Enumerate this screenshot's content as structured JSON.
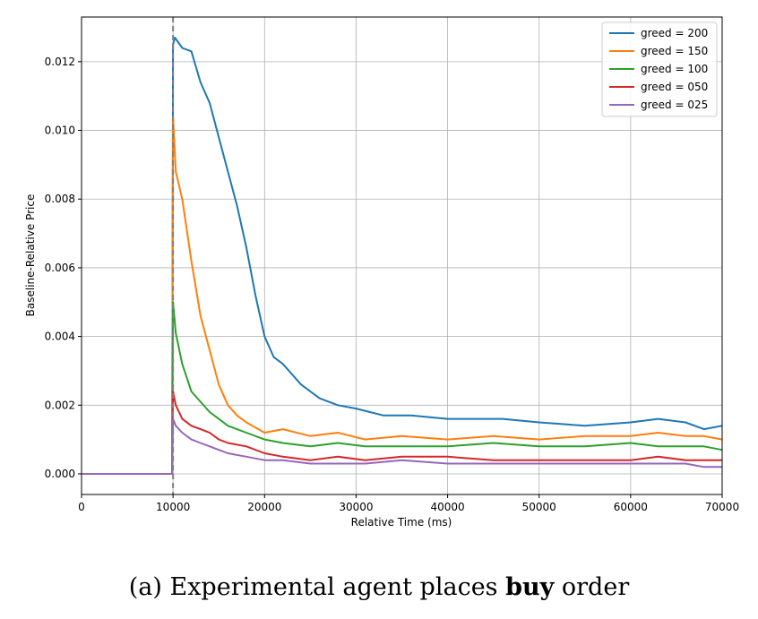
{
  "chart_data": {
    "type": "line",
    "title": "",
    "xlabel": "Relative Time (ms)",
    "ylabel": "Baseline-Relative Price",
    "xlim": [
      0,
      70000
    ],
    "ylim": [
      -0.0006,
      0.0133
    ],
    "xticks": [
      0,
      10000,
      20000,
      30000,
      40000,
      50000,
      60000,
      70000
    ],
    "yticks": [
      0.0,
      0.002,
      0.004,
      0.006,
      0.008,
      0.01,
      0.012
    ],
    "xtick_labels": [
      "0",
      "10000",
      "20000",
      "30000",
      "40000",
      "50000",
      "60000",
      "70000"
    ],
    "ytick_labels": [
      "0.000",
      "0.002",
      "0.004",
      "0.006",
      "0.008",
      "0.010",
      "0.012"
    ],
    "grid": true,
    "legend_position": "top-right",
    "reference_line": {
      "x": 10000,
      "style": "dashed",
      "color": "#808080"
    },
    "series": [
      {
        "name": "greed = 200",
        "color": "#1f77b4",
        "x": [
          0,
          9900,
          10000,
          10200,
          11000,
          12000,
          13000,
          14000,
          15000,
          16000,
          17000,
          18000,
          19000,
          20000,
          21000,
          22000,
          23000,
          24000,
          26000,
          28000,
          30000,
          33000,
          36000,
          40000,
          43000,
          46000,
          50000,
          55000,
          60000,
          63000,
          66000,
          68000,
          70000
        ],
        "y": [
          0,
          0,
          0.0125,
          0.0127,
          0.0124,
          0.0123,
          0.0114,
          0.0108,
          0.0098,
          0.0088,
          0.0078,
          0.0066,
          0.0052,
          0.004,
          0.0034,
          0.0032,
          0.0029,
          0.0026,
          0.0022,
          0.002,
          0.0019,
          0.0017,
          0.0017,
          0.0016,
          0.0016,
          0.0016,
          0.0015,
          0.0014,
          0.0015,
          0.0016,
          0.0015,
          0.0013,
          0.0014
        ]
      },
      {
        "name": "greed = 150",
        "color": "#ff7f0e",
        "x": [
          0,
          9900,
          10000,
          10300,
          11000,
          12000,
          13000,
          14000,
          15000,
          16000,
          17000,
          18000,
          20000,
          22000,
          25000,
          28000,
          31000,
          35000,
          40000,
          45000,
          50000,
          55000,
          60000,
          63000,
          66000,
          68000,
          70000
        ],
        "y": [
          0,
          0,
          0.0104,
          0.0088,
          0.008,
          0.0062,
          0.0046,
          0.0036,
          0.0026,
          0.002,
          0.0017,
          0.0015,
          0.0012,
          0.0013,
          0.0011,
          0.0012,
          0.001,
          0.0011,
          0.001,
          0.0011,
          0.001,
          0.0011,
          0.0011,
          0.0012,
          0.0011,
          0.0011,
          0.001
        ]
      },
      {
        "name": "greed = 100",
        "color": "#2ca02c",
        "x": [
          0,
          9900,
          10000,
          10300,
          11000,
          12000,
          13000,
          14000,
          15000,
          16000,
          18000,
          20000,
          22000,
          25000,
          28000,
          31000,
          35000,
          40000,
          45000,
          50000,
          55000,
          60000,
          63000,
          66000,
          68000,
          70000
        ],
        "y": [
          0,
          0,
          0.005,
          0.0041,
          0.0032,
          0.0024,
          0.0021,
          0.0018,
          0.0016,
          0.0014,
          0.0012,
          0.001,
          0.0009,
          0.0008,
          0.0009,
          0.0008,
          0.0008,
          0.0008,
          0.0009,
          0.0008,
          0.0008,
          0.0009,
          0.0008,
          0.0008,
          0.0008,
          0.0007
        ]
      },
      {
        "name": "greed = 050",
        "color": "#d62728",
        "x": [
          0,
          9900,
          10000,
          10300,
          11000,
          12000,
          13000,
          14000,
          15000,
          16000,
          18000,
          20000,
          22000,
          25000,
          28000,
          31000,
          35000,
          40000,
          45000,
          50000,
          55000,
          60000,
          63000,
          66000,
          68000,
          70000
        ],
        "y": [
          0,
          0,
          0.0024,
          0.002,
          0.0016,
          0.0014,
          0.0013,
          0.0012,
          0.001,
          0.0009,
          0.0008,
          0.0006,
          0.0005,
          0.0004,
          0.0005,
          0.0004,
          0.0005,
          0.0005,
          0.0004,
          0.0004,
          0.0004,
          0.0004,
          0.0005,
          0.0004,
          0.0004,
          0.0004
        ]
      },
      {
        "name": "greed = 025",
        "color": "#9467bd",
        "x": [
          0,
          9900,
          10000,
          10300,
          11000,
          12000,
          13000,
          14000,
          15000,
          16000,
          18000,
          20000,
          22000,
          25000,
          28000,
          31000,
          35000,
          40000,
          45000,
          50000,
          55000,
          60000,
          63000,
          66000,
          68000,
          70000
        ],
        "y": [
          0,
          0,
          0.0016,
          0.0014,
          0.0012,
          0.001,
          0.0009,
          0.0008,
          0.0007,
          0.0006,
          0.0005,
          0.0004,
          0.0004,
          0.0003,
          0.0003,
          0.0003,
          0.0004,
          0.0003,
          0.0003,
          0.0003,
          0.0003,
          0.0003,
          0.0003,
          0.0003,
          0.0002,
          0.0002
        ]
      }
    ]
  },
  "caption": {
    "prefix": "(a) Experimental agent places ",
    "bold": "buy",
    "suffix": " order"
  }
}
